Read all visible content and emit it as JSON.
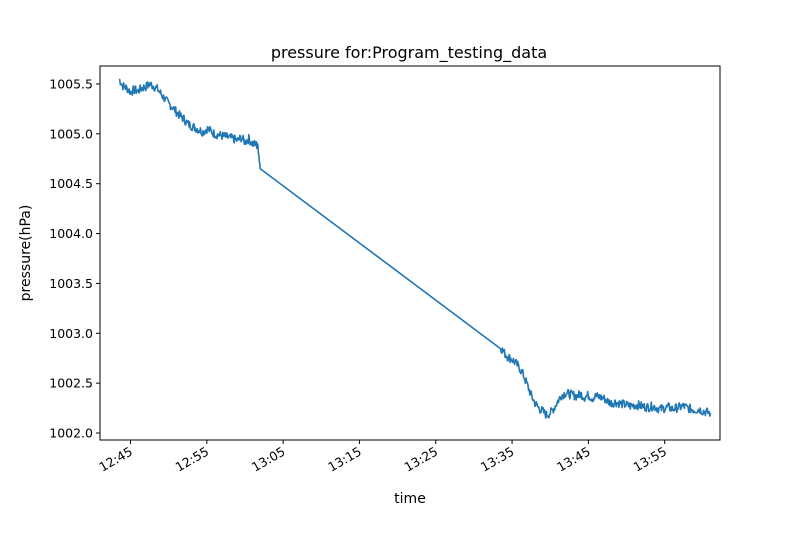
{
  "chart_data": {
    "type": "line",
    "title": "pressure for:Program_testing_data",
    "xlabel": "time",
    "ylabel": "pressure(hPa)",
    "x_unit": "clock time (HH:MM)",
    "xlim": [
      "12:41:00",
      "14:02:15"
    ],
    "ylim": [
      1001.93,
      1005.68
    ],
    "x_ticks": [
      "12:45",
      "12:55",
      "13:05",
      "13:15",
      "13:25",
      "13:35",
      "13:45",
      "13:55"
    ],
    "y_ticks": [
      1002.0,
      1002.5,
      1003.0,
      1003.5,
      1004.0,
      1004.5,
      1005.0,
      1005.5
    ],
    "y_tick_labels": [
      "1002.0",
      "1002.5",
      "1003.0",
      "1003.5",
      "1004.0",
      "1004.5",
      "1005.0",
      "1005.5"
    ],
    "grid": false,
    "line_color": "#1f77b4",
    "series": [
      {
        "x": [
          "12:43:30",
          "12:44:00",
          "12:44:30",
          "12:45:00",
          "12:45:30",
          "12:46:00",
          "12:46:30",
          "12:47:00",
          "12:47:30",
          "12:48:00",
          "12:48:30",
          "12:49:00",
          "12:49:30",
          "12:50:00",
          "12:50:30",
          "12:51:00",
          "12:51:30",
          "12:52:00",
          "12:52:30",
          "12:53:00",
          "12:53:30",
          "12:54:00",
          "12:54:30",
          "12:55:00",
          "12:55:30",
          "12:56:00",
          "12:56:30",
          "12:57:00",
          "12:57:30",
          "12:58:00",
          "12:58:30",
          "12:59:00",
          "12:59:30",
          "13:00:00",
          "13:00:30",
          "13:01:00",
          "13:01:30",
          "13:01:45",
          "13:02:00",
          "13:33:30",
          "13:34:00",
          "13:34:30",
          "13:35:00",
          "13:35:30",
          "13:36:00",
          "13:36:30",
          "13:37:00",
          "13:37:30",
          "13:38:00",
          "13:38:30",
          "13:39:00",
          "13:39:30",
          "13:40:00",
          "13:40:30",
          "13:41:00",
          "13:41:30",
          "13:42:00",
          "13:42:30",
          "13:43:00",
          "13:43:30",
          "13:44:00",
          "13:44:30",
          "13:45:00",
          "13:45:30",
          "13:46:00",
          "13:46:30",
          "13:47:00",
          "13:47:30",
          "13:48:00",
          "13:48:30",
          "13:49:00",
          "13:49:30",
          "13:50:00",
          "13:50:30",
          "13:51:00",
          "13:51:30",
          "13:52:00",
          "13:52:30",
          "13:53:00",
          "13:53:30",
          "13:54:00",
          "13:54:30",
          "13:55:00",
          "13:55:30",
          "13:56:00",
          "13:56:30",
          "13:57:00",
          "13:57:30",
          "13:58:00",
          "13:58:30",
          "13:59:00",
          "13:59:30",
          "14:00:00",
          "14:00:30",
          "14:01:00"
        ],
        "y": [
          1005.55,
          1005.48,
          1005.46,
          1005.42,
          1005.44,
          1005.43,
          1005.46,
          1005.47,
          1005.5,
          1005.48,
          1005.45,
          1005.4,
          1005.35,
          1005.3,
          1005.27,
          1005.22,
          1005.18,
          1005.15,
          1005.1,
          1005.08,
          1005.06,
          1005.04,
          1005.02,
          1005.05,
          1005.03,
          1005.0,
          1004.99,
          1004.98,
          1004.97,
          1004.96,
          1004.95,
          1004.93,
          1004.96,
          1004.92,
          1004.95,
          1004.9,
          1004.89,
          1004.85,
          1004.65,
          1002.86,
          1002.8,
          1002.76,
          1002.74,
          1002.7,
          1002.65,
          1002.58,
          1002.48,
          1002.38,
          1002.3,
          1002.25,
          1002.22,
          1002.18,
          1002.2,
          1002.25,
          1002.32,
          1002.38,
          1002.4,
          1002.39,
          1002.38,
          1002.37,
          1002.39,
          1002.36,
          1002.38,
          1002.35,
          1002.37,
          1002.36,
          1002.35,
          1002.32,
          1002.3,
          1002.31,
          1002.3,
          1002.29,
          1002.28,
          1002.27,
          1002.28,
          1002.28,
          1002.27,
          1002.26,
          1002.26,
          1002.27,
          1002.25,
          1002.24,
          1002.25,
          1002.26,
          1002.24,
          1002.25,
          1002.26,
          1002.27,
          1002.25,
          1002.24,
          1002.23,
          1002.24,
          1002.22,
          1002.21,
          1002.2
        ]
      }
    ]
  }
}
